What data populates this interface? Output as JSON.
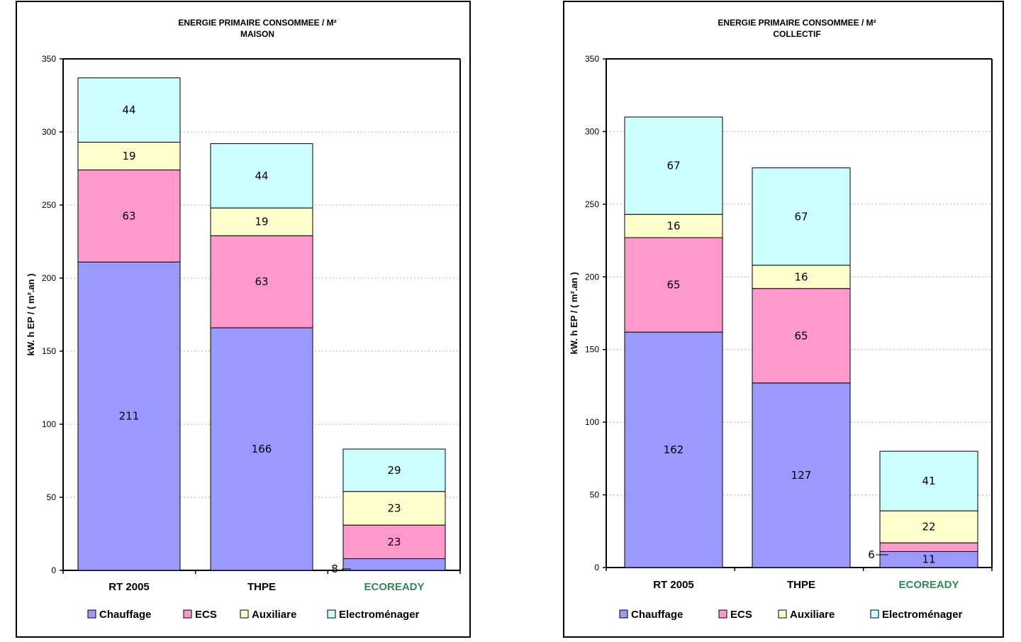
{
  "chart_data": [
    {
      "type": "bar",
      "stacked": true,
      "title": "ENERGIE PRIMAIRE CONSOMMEE / M²",
      "subtitle": "MAISON",
      "ylabel": "kW. h EP / ( m².an )",
      "ylim": [
        0,
        350
      ],
      "yticks": [
        0,
        50,
        100,
        150,
        200,
        250,
        300,
        350
      ],
      "grid": true,
      "legend_position": "bottom",
      "categories": [
        "RT 2005",
        "THPE",
        "ECOREADY"
      ],
      "category_colors": [
        "#000000",
        "#000000",
        "#2e8b57"
      ],
      "series": [
        {
          "name": "Chauffage",
          "color": "#9999ff",
          "values": [
            211,
            166,
            8
          ]
        },
        {
          "name": "ECS",
          "color": "#ff99cc",
          "values": [
            63,
            63,
            23
          ]
        },
        {
          "name": "Auxiliare",
          "color": "#ffffcc",
          "values": [
            19,
            19,
            23
          ]
        },
        {
          "name": "Electroménager",
          "color": "#ccffff",
          "values": [
            44,
            44,
            29
          ]
        }
      ]
    },
    {
      "type": "bar",
      "stacked": true,
      "title": "ENERGIE PRIMAIRE CONSOMMEE / M²",
      "subtitle": "COLLECTIF",
      "ylabel": "kW. h EP / ( m².an )",
      "ylim": [
        0,
        350
      ],
      "yticks": [
        0,
        50,
        100,
        150,
        200,
        250,
        300,
        350
      ],
      "grid": true,
      "legend_position": "bottom",
      "categories": [
        "RT 2005",
        "THPE",
        "ECOREADY"
      ],
      "category_colors": [
        "#000000",
        "#000000",
        "#2e8b57"
      ],
      "series": [
        {
          "name": "Chauffage",
          "color": "#9999ff",
          "values": [
            162,
            127,
            11
          ]
        },
        {
          "name": "ECS",
          "color": "#ff99cc",
          "values": [
            65,
            65,
            6
          ]
        },
        {
          "name": "Auxiliare",
          "color": "#ffffcc",
          "values": [
            16,
            16,
            22
          ]
        },
        {
          "name": "Electroménager",
          "color": "#ccffff",
          "values": [
            67,
            67,
            41
          ]
        }
      ]
    }
  ]
}
